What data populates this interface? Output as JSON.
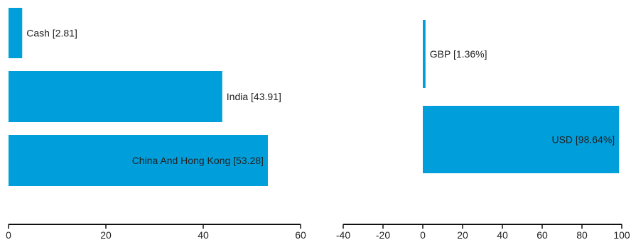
{
  "colors": {
    "bar": "#009fdc",
    "axis": "#111111",
    "text": "#222222"
  },
  "chart_data": [
    {
      "type": "bar",
      "orientation": "horizontal",
      "categories": [
        "Cash",
        "India",
        "China And Hong Kong"
      ],
      "values": [
        2.81,
        43.91,
        53.28
      ],
      "labels": [
        "Cash [2.81]",
        "India [43.91]",
        "China And Hong Kong [53.28]"
      ],
      "xlim": [
        0,
        60
      ],
      "xticks": [
        "0",
        "20",
        "40",
        "60"
      ],
      "grid": false,
      "legend": "none"
    },
    {
      "type": "bar",
      "orientation": "horizontal",
      "categories": [
        "GBP",
        "USD"
      ],
      "values": [
        1.36,
        98.64
      ],
      "labels": [
        "GBP [1.36%]",
        "USD [98.64%]"
      ],
      "xlim": [
        -40,
        100
      ],
      "xticks": [
        "-40",
        "-20",
        "0",
        "20",
        "40",
        "60",
        "80",
        "100"
      ],
      "grid": false,
      "legend": "none"
    }
  ]
}
